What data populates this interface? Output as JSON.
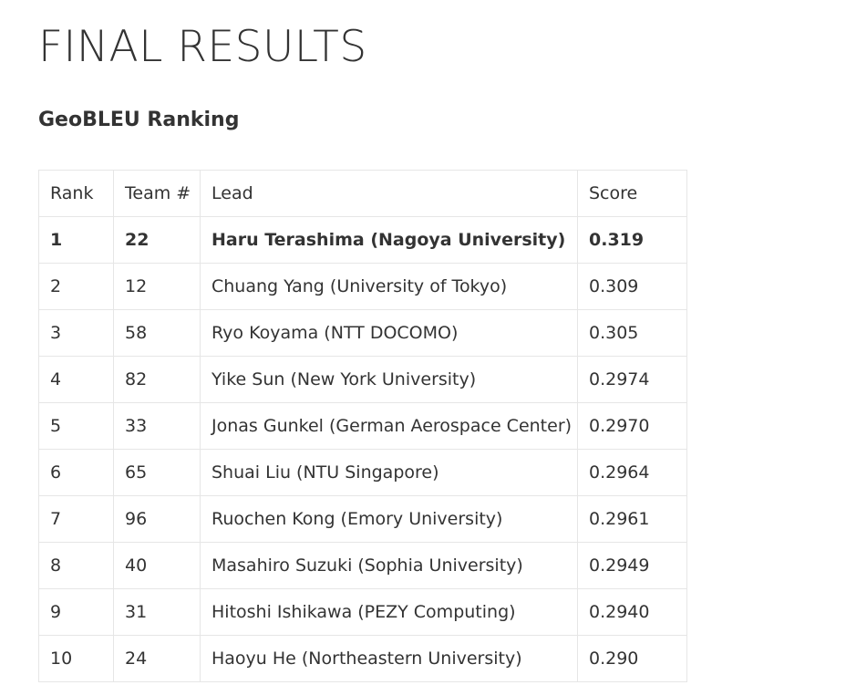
{
  "page": {
    "title": "FINAL RESULTS",
    "section_title": "GeoBLEU Ranking"
  },
  "table": {
    "headers": {
      "rank": "Rank",
      "team": "Team #",
      "lead": "Lead",
      "score": "Score"
    },
    "rows": [
      {
        "rank": "1",
        "team": "22",
        "lead": "Haru Terashima (Nagoya University)",
        "score": "0.319",
        "emphasis": true
      },
      {
        "rank": "2",
        "team": "12",
        "lead": "Chuang Yang (University of Tokyo)",
        "score": "0.309",
        "emphasis": false
      },
      {
        "rank": "3",
        "team": "58",
        "lead": "Ryo Koyama (NTT DOCOMO)",
        "score": "0.305",
        "emphasis": false
      },
      {
        "rank": "4",
        "team": "82",
        "lead": "Yike Sun (New York University)",
        "score": "0.2974",
        "emphasis": false
      },
      {
        "rank": "5",
        "team": "33",
        "lead": "Jonas Gunkel (German Aerospace Center)",
        "score": "0.2970",
        "emphasis": false
      },
      {
        "rank": "6",
        "team": "65",
        "lead": "Shuai Liu (NTU Singapore)",
        "score": "0.2964",
        "emphasis": false
      },
      {
        "rank": "7",
        "team": "96",
        "lead": "Ruochen Kong (Emory University)",
        "score": "0.2961",
        "emphasis": false
      },
      {
        "rank": "8",
        "team": "40",
        "lead": "Masahiro Suzuki (Sophia University)",
        "score": "0.2949",
        "emphasis": false
      },
      {
        "rank": "9",
        "team": "31",
        "lead": "Hitoshi Ishikawa (PEZY Computing)",
        "score": "0.2940",
        "emphasis": false
      },
      {
        "rank": "10",
        "team": "24",
        "lead": "Haoyu He (Northeastern University)",
        "score": "0.290",
        "emphasis": false
      }
    ]
  }
}
